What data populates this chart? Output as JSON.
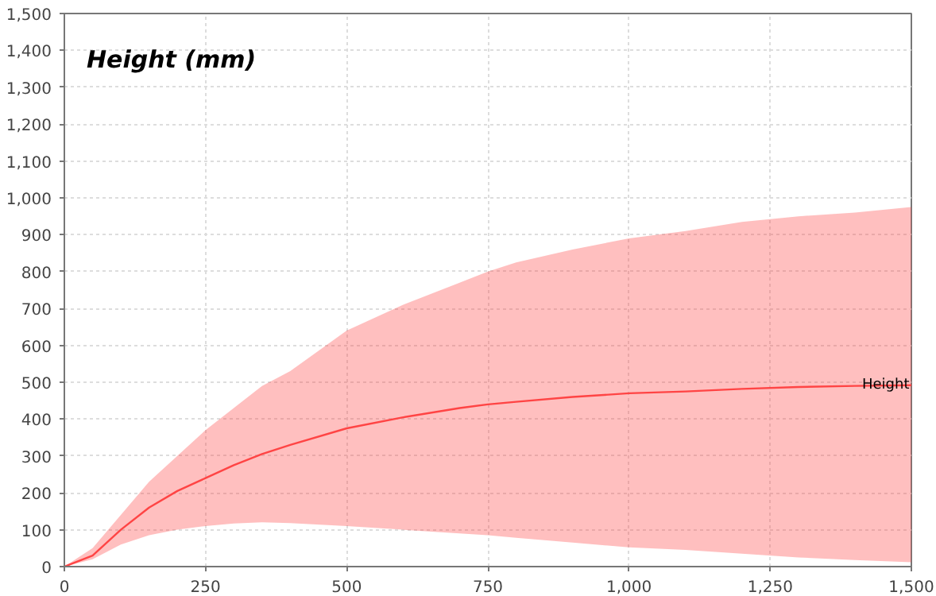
{
  "chart_data": {
    "type": "line",
    "title": "Height (mm)",
    "x": [
      0,
      50,
      100,
      150,
      200,
      250,
      300,
      350,
      400,
      500,
      600,
      700,
      750,
      800,
      900,
      1000,
      1100,
      1200,
      1300,
      1400,
      1500
    ],
    "series": [
      {
        "name": "Height",
        "color": "#ff4444",
        "values": [
          0,
          30,
          100,
          160,
          205,
          240,
          275,
          305,
          330,
          375,
          405,
          430,
          440,
          447,
          460,
          470,
          475,
          482,
          487,
          490,
          492
        ],
        "lower": [
          0,
          20,
          60,
          85,
          100,
          110,
          117,
          120,
          118,
          110,
          100,
          90,
          85,
          78,
          65,
          52,
          45,
          35,
          25,
          18,
          12
        ],
        "upper": [
          0,
          50,
          140,
          230,
          300,
          370,
          430,
          490,
          530,
          640,
          710,
          770,
          800,
          825,
          860,
          890,
          910,
          935,
          950,
          960,
          975
        ]
      }
    ],
    "xlim": [
      0,
      1500
    ],
    "ylim": [
      0,
      1500
    ],
    "xticks": [
      0,
      {
        "value": 250,
        "label": "250"
      },
      {
        "value": 500,
        "label": "500"
      },
      {
        "value": 750,
        "label": "750"
      },
      {
        "value": 1000,
        "label": "1,000"
      },
      {
        "value": 1250,
        "label": "1,250"
      },
      {
        "value": 1500,
        "label": "1,500"
      }
    ],
    "yticks": [
      0,
      100,
      200,
      300,
      400,
      500,
      600,
      700,
      800,
      900,
      {
        "value": 1000,
        "label": "1,000"
      },
      {
        "value": 1100,
        "label": "1,100"
      },
      {
        "value": 1200,
        "label": "1,200"
      },
      {
        "value": 1300,
        "label": "1,300"
      },
      {
        "value": 1400,
        "label": "1,400"
      },
      {
        "value": 1500,
        "label": "1,500"
      }
    ],
    "grid": true,
    "marker": "none",
    "line_style": "solid"
  }
}
